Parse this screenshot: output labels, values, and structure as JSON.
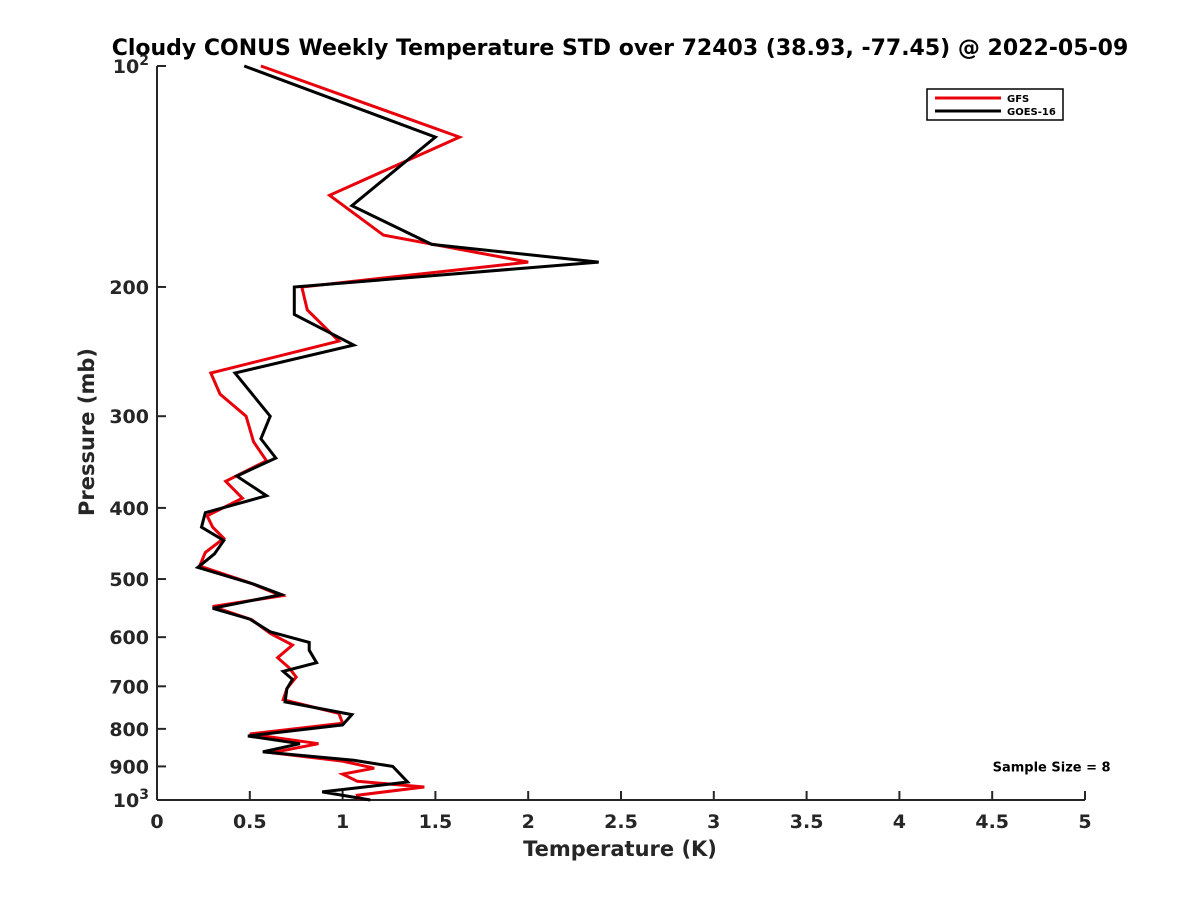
{
  "chart_data": {
    "type": "line",
    "title": "Cloudy CONUS Weekly Temperature STD over 72403 (38.93, -77.45) @ 2022-05-09",
    "xlabel": "Temperature (K)",
    "ylabel": "Pressure (mb)",
    "xlim": [
      0,
      5
    ],
    "ylim": [
      100,
      1000
    ],
    "yscale": "log",
    "y_reversed": true,
    "grid": false,
    "legend_position": "top-right",
    "x_ticks": [
      0,
      0.5,
      1,
      1.5,
      2,
      2.5,
      3,
      3.5,
      4,
      4.5,
      5
    ],
    "x_tick_labels": [
      "0",
      "0.5",
      "1",
      "1.5",
      "2",
      "2.5",
      "3",
      "3.5",
      "4",
      "4.5",
      "5"
    ],
    "y_ticks": [
      100,
      200,
      300,
      400,
      500,
      600,
      700,
      800,
      900,
      1000
    ],
    "y_tick_labels": [
      {
        "base": "10",
        "exp": "2"
      },
      {
        "base": "200",
        "exp": ""
      },
      {
        "base": "300",
        "exp": ""
      },
      {
        "base": "400",
        "exp": ""
      },
      {
        "base": "500",
        "exp": ""
      },
      {
        "base": "600",
        "exp": ""
      },
      {
        "base": "700",
        "exp": ""
      },
      {
        "base": "800",
        "exp": ""
      },
      {
        "base": "900",
        "exp": ""
      },
      {
        "base": "10",
        "exp": "3"
      }
    ],
    "series": [
      {
        "name": "GFS",
        "color": "#e8000b",
        "points": [
          [
            0.56,
            100
          ],
          [
            1.63,
            125
          ],
          [
            0.93,
            150
          ],
          [
            1.22,
            170
          ],
          [
            2.0,
            185
          ],
          [
            0.78,
            200
          ],
          [
            0.81,
            215
          ],
          [
            0.98,
            237
          ],
          [
            0.29,
            262
          ],
          [
            0.34,
            280
          ],
          [
            0.48,
            300
          ],
          [
            0.52,
            325
          ],
          [
            0.59,
            345
          ],
          [
            0.37,
            368
          ],
          [
            0.46,
            388
          ],
          [
            0.27,
            410
          ],
          [
            0.3,
            425
          ],
          [
            0.36,
            440
          ],
          [
            0.26,
            460
          ],
          [
            0.23,
            480
          ],
          [
            0.5,
            506
          ],
          [
            0.67,
            527
          ],
          [
            0.3,
            545
          ],
          [
            0.51,
            568
          ],
          [
            0.61,
            593
          ],
          [
            0.73,
            615
          ],
          [
            0.65,
            640
          ],
          [
            0.71,
            660
          ],
          [
            0.75,
            680
          ],
          [
            0.7,
            705
          ],
          [
            0.68,
            730
          ],
          [
            0.98,
            762
          ],
          [
            1.0,
            786
          ],
          [
            0.5,
            813
          ],
          [
            0.87,
            838
          ],
          [
            0.62,
            862
          ],
          [
            1.0,
            885
          ],
          [
            1.17,
            905
          ],
          [
            1.0,
            922
          ],
          [
            1.08,
            943
          ],
          [
            1.44,
            960
          ],
          [
            1.08,
            985
          ],
          [
            1.09,
            1000
          ]
        ]
      },
      {
        "name": "GOES-16",
        "color": "#000000",
        "points": [
          [
            0.47,
            100
          ],
          [
            1.5,
            125
          ],
          [
            1.05,
            155
          ],
          [
            1.48,
            175
          ],
          [
            2.38,
            185
          ],
          [
            0.74,
            200
          ],
          [
            0.74,
            218
          ],
          [
            1.06,
            240
          ],
          [
            0.42,
            262
          ],
          [
            0.61,
            300
          ],
          [
            0.56,
            322
          ],
          [
            0.64,
            342
          ],
          [
            0.43,
            362
          ],
          [
            0.59,
            385
          ],
          [
            0.26,
            406
          ],
          [
            0.24,
            425
          ],
          [
            0.36,
            443
          ],
          [
            0.31,
            462
          ],
          [
            0.22,
            482
          ],
          [
            0.52,
            508
          ],
          [
            0.67,
            525
          ],
          [
            0.3,
            548
          ],
          [
            0.5,
            567
          ],
          [
            0.61,
            590
          ],
          [
            0.82,
            610
          ],
          [
            0.82,
            625
          ],
          [
            0.86,
            650
          ],
          [
            0.68,
            668
          ],
          [
            0.73,
            685
          ],
          [
            0.7,
            705
          ],
          [
            0.69,
            735
          ],
          [
            1.05,
            765
          ],
          [
            1.0,
            790
          ],
          [
            0.49,
            818
          ],
          [
            0.77,
            838
          ],
          [
            0.57,
            860
          ],
          [
            1.06,
            883
          ],
          [
            1.27,
            900
          ],
          [
            1.35,
            945
          ],
          [
            0.89,
            975
          ],
          [
            1.15,
            1000
          ]
        ]
      }
    ],
    "annotations": [
      {
        "text": "Sample Size = 8",
        "x": 4.82,
        "y": 900
      }
    ]
  }
}
